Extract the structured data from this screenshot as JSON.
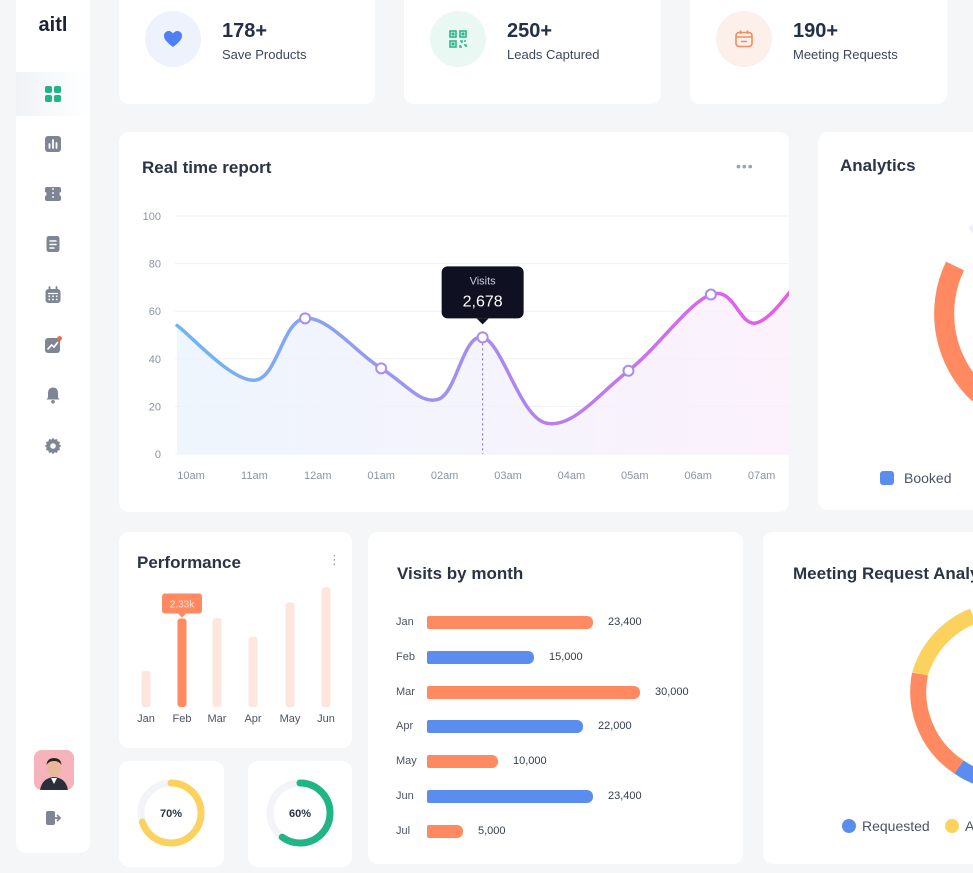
{
  "brand": "aitl",
  "sidebar": {
    "items": [
      {
        "icon": "dashboard-grid-icon",
        "active": true
      },
      {
        "icon": "bar-chart-icon"
      },
      {
        "icon": "ticket-icon"
      },
      {
        "icon": "document-icon"
      },
      {
        "icon": "calendar-icon"
      },
      {
        "icon": "trend-chart-icon"
      },
      {
        "icon": "bell-icon"
      },
      {
        "icon": "gear-icon"
      }
    ],
    "logout_icon": "logout-icon"
  },
  "stats": [
    {
      "value": "178+",
      "label": "Save Products",
      "icon": "heart-icon",
      "color": "#4f7ff5",
      "bg": "#eef2fd"
    },
    {
      "value": "250+",
      "label": "Leads Captured",
      "icon": "qr-code-icon",
      "color": "#2fb58c",
      "bg": "#e9f8f3"
    },
    {
      "value": "190+",
      "label": "Meeting Requests",
      "icon": "calendar-icon",
      "color": "#f38b5f",
      "bg": "#fdf0ea"
    }
  ],
  "realtime": {
    "title": "Real time report",
    "menu": "•••",
    "tooltip_label": "Visits",
    "tooltip_value": "2,678"
  },
  "analytics": {
    "title": "Analytics",
    "legend": "Booked"
  },
  "performance": {
    "title": "Performance",
    "tooltip": "2.33k"
  },
  "visits_by_month": {
    "title": "Visits by month"
  },
  "meeting": {
    "title": "Meeting Request Analy",
    "legend": [
      "Requested",
      "A"
    ]
  },
  "rings": [
    {
      "label": "70%",
      "value": 70,
      "color": "#fcd25f"
    },
    {
      "label": "60%",
      "value": 60,
      "color": "#1fb585"
    }
  ],
  "colors": {
    "accent_green": "#1fb585",
    "orange": "#ff8a62",
    "blue": "#5b8def",
    "yellow": "#fcd25f"
  },
  "chart_data": [
    {
      "type": "line",
      "title": "Real time report",
      "categories": [
        "10am",
        "11am",
        "12am",
        "01am",
        "02am",
        "03am",
        "04am",
        "05am",
        "06am",
        "07am"
      ],
      "ylim": [
        0,
        100
      ],
      "yticks": [
        0,
        20,
        40,
        60,
        80,
        100
      ],
      "points": [
        [
          0,
          54
        ],
        [
          1.0,
          31
        ],
        [
          1.8,
          57
        ],
        [
          3.0,
          36
        ],
        [
          3.9,
          23
        ],
        [
          4.6,
          49
        ],
        [
          5.6,
          13
        ],
        [
          6.9,
          35
        ],
        [
          8.2,
          67
        ],
        [
          8.9,
          55
        ],
        [
          9.6,
          73
        ]
      ],
      "markers": [
        1.8,
        3.0,
        4.6,
        6.9,
        8.2
      ]
    },
    {
      "type": "bar",
      "title": "Performance",
      "categories": [
        "Jan",
        "Feb",
        "Mar",
        "Apr",
        "May",
        "Jun"
      ],
      "values": [
        0.95,
        2.33,
        2.34,
        1.85,
        2.75,
        3.15
      ],
      "highlight": "Feb"
    },
    {
      "type": "bar",
      "orientation": "horizontal",
      "title": "Visits by month",
      "categories": [
        "Jan",
        "Feb",
        "Mar",
        "Apr",
        "May",
        "Jun",
        "Jul"
      ],
      "values": [
        23400,
        15000,
        30000,
        22000,
        10000,
        23400,
        5000
      ],
      "labels": [
        "23,400",
        "15,000",
        "30,000",
        "22,000",
        "10,000",
        "23,400",
        "5,000"
      ]
    }
  ]
}
